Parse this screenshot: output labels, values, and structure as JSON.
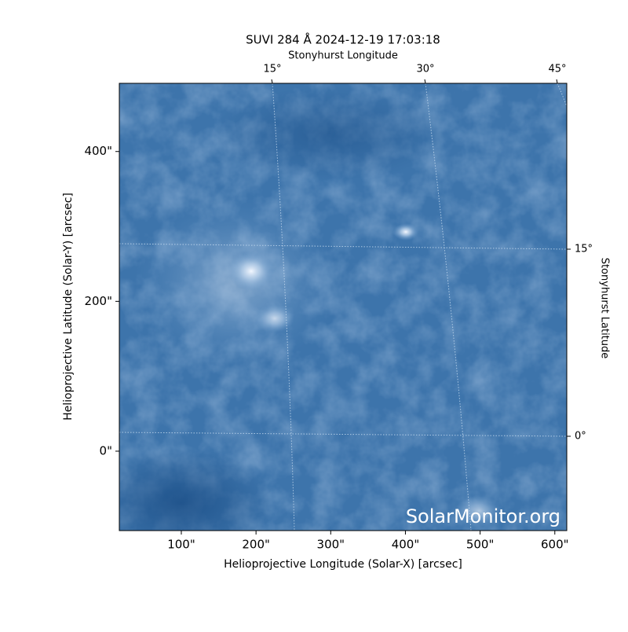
{
  "chart_data": {
    "type": "image",
    "title": "SUVI 284 Å 2024-12-19 17:03:18",
    "xlabel": "Helioprojective Longitude (Solar-X) [arcsec]",
    "ylabel": "Helioprojective Latitude (Solar-Y) [arcsec]",
    "top_label": "Stonyhurst Longitude",
    "right_label": "Stonyhurst Latitude",
    "watermark": "SolarMonitor.org",
    "colormap": "blue",
    "xlim": [
      17,
      616
    ],
    "ylim": [
      -106,
      491
    ],
    "xticks": [
      {
        "value": 100,
        "label": "100\""
      },
      {
        "value": 200,
        "label": "200\""
      },
      {
        "value": 300,
        "label": "300\""
      },
      {
        "value": 400,
        "label": "400\""
      },
      {
        "value": 500,
        "label": "500\""
      },
      {
        "value": 600,
        "label": "600\""
      }
    ],
    "yticks": [
      {
        "value": 0,
        "label": "0\""
      },
      {
        "value": 200,
        "label": "200\""
      },
      {
        "value": 400,
        "label": "400\""
      }
    ],
    "top_ticks": [
      {
        "value": 15,
        "label": "15°"
      },
      {
        "value": 30,
        "label": "30°"
      },
      {
        "value": 45,
        "label": "45°"
      }
    ],
    "right_ticks": [
      {
        "value": 15,
        "label": "15°"
      },
      {
        "value": 0,
        "label": "0°"
      }
    ]
  }
}
